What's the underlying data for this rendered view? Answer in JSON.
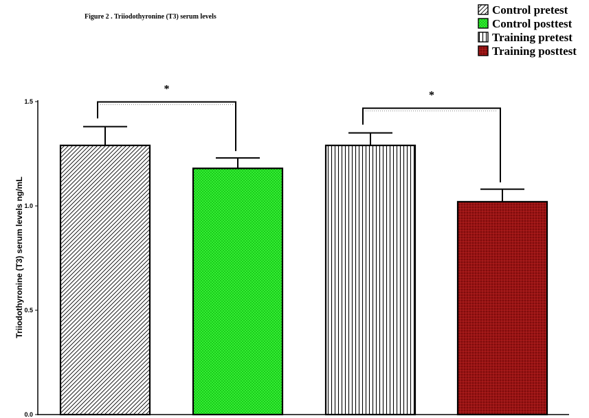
{
  "chart_data": {
    "type": "bar",
    "title": "Figure 2 . Triiodothyronine (T3) serum levels",
    "ylabel": "Triiodothyronine (T3) serum levels ng/mL",
    "xlabel": "",
    "ylim": [
      0,
      1.5
    ],
    "yticks": [
      0.0,
      0.5,
      1.0,
      1.5
    ],
    "ytick_labels": [
      "0.0",
      "0.5",
      "1.0",
      "1.5"
    ],
    "categories": [
      "Control pretest",
      "Control posttest",
      "Training pretest",
      "Training posttest"
    ],
    "values": [
      1.29,
      1.18,
      1.29,
      1.02
    ],
    "errors": [
      0.09,
      0.05,
      0.06,
      0.06
    ],
    "fills": [
      {
        "pattern": "diagonal",
        "color": "#000000",
        "bg": "#ffffff"
      },
      {
        "pattern": "dots",
        "color": "#00cc00",
        "bg": "#33ff33"
      },
      {
        "pattern": "vertical",
        "color": "#000000",
        "bg": "#ffffff"
      },
      {
        "pattern": "cross",
        "color": "#7a0000",
        "bg": "#a01010"
      }
    ],
    "significance": [
      {
        "from": 0,
        "to": 1,
        "label": "*"
      },
      {
        "from": 2,
        "to": 3,
        "label": "*"
      }
    ],
    "legend": {
      "position": "top-right",
      "entries": [
        "Control pretest",
        "Control posttest",
        "Training pretest",
        "Training posttest"
      ]
    },
    "grid": false
  }
}
